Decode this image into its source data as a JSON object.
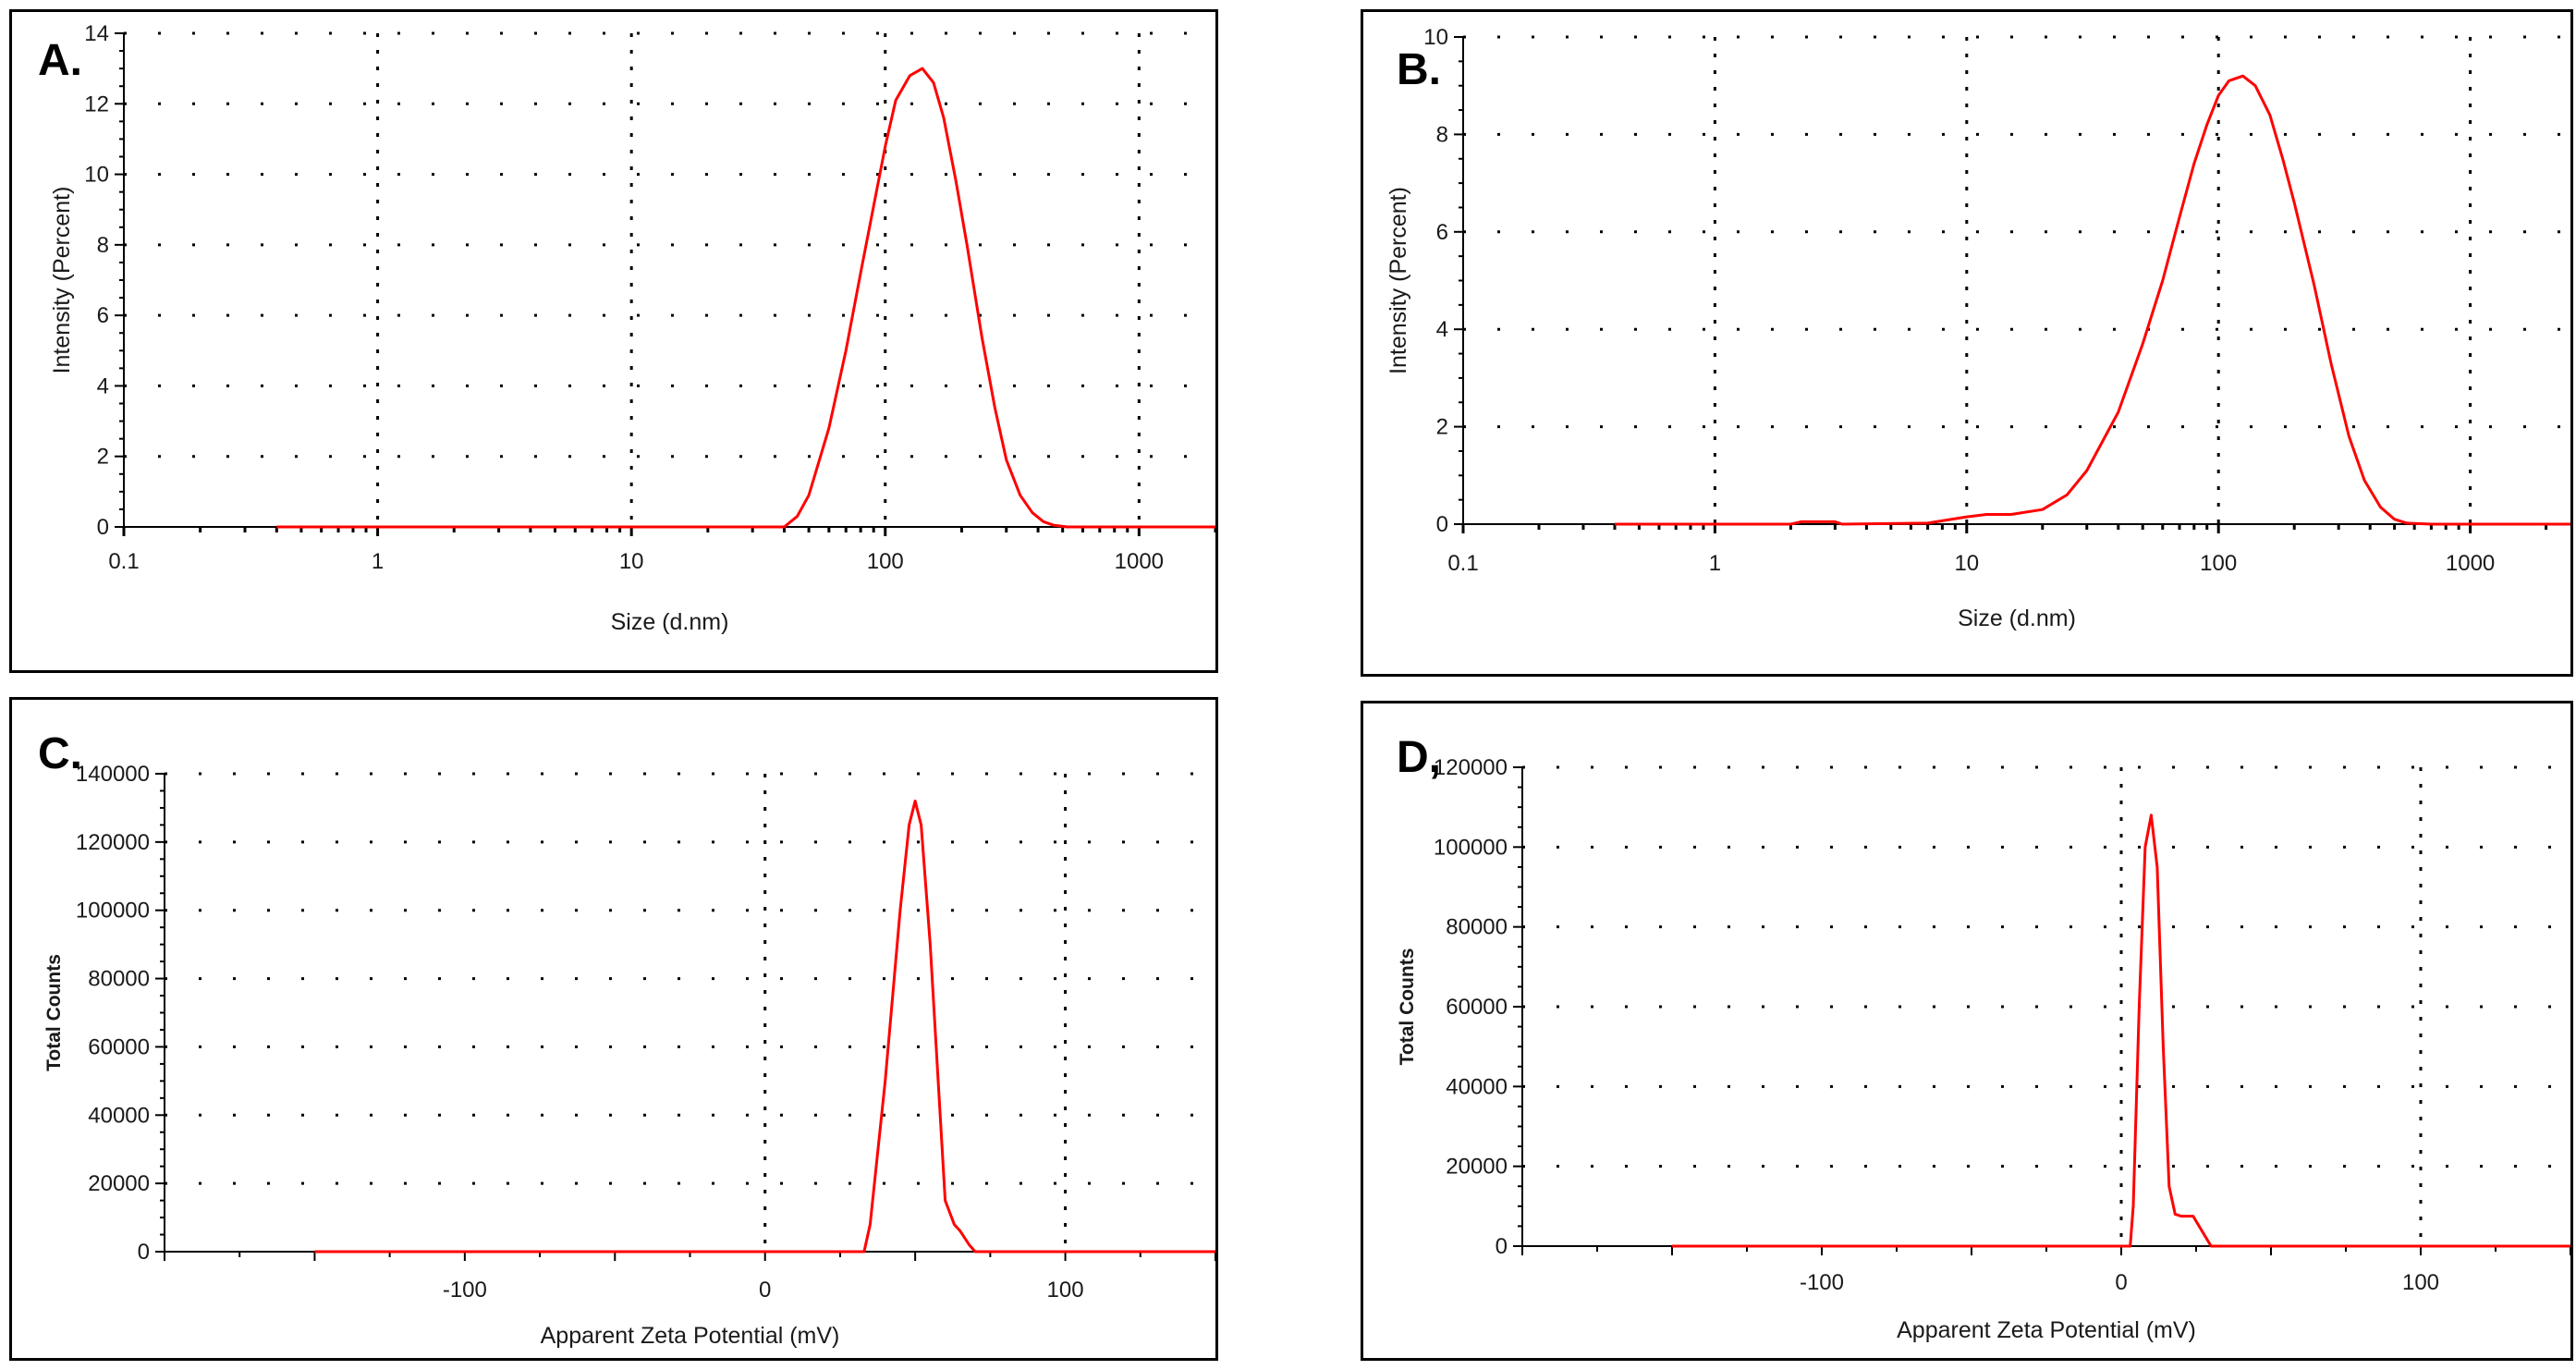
{
  "figure": {
    "background": "#ffffff",
    "curve_color": "#ff0000",
    "grid_color": "#000000"
  },
  "chart_data": [
    {
      "id": "a",
      "panel_label": "A.",
      "type": "line",
      "xscale": "log",
      "xlim": [
        0.1,
        2000
      ],
      "ylim": [
        0,
        14
      ],
      "xlabel": "Size (d.nm)",
      "ylabel": "Intensity (Percent)",
      "xticks": [
        0.1,
        1,
        10,
        100,
        1000
      ],
      "xtick_labels": [
        "0.1",
        "1",
        "10",
        "100",
        "1000"
      ],
      "yticks": [
        0,
        2,
        4,
        6,
        8,
        10,
        12,
        14
      ],
      "ytick_labels": [
        "0",
        "2",
        "4",
        "6",
        "8",
        "10",
        "12",
        "14"
      ],
      "series": [
        {
          "name": "Intensity",
          "x": [
            0.4,
            1,
            10,
            30,
            40,
            45,
            50,
            60,
            70,
            80,
            90,
            100,
            110,
            125,
            140,
            155,
            170,
            190,
            210,
            240,
            270,
            300,
            340,
            380,
            420,
            460,
            520,
            1000,
            2000
          ],
          "y": [
            0,
            0,
            0,
            0,
            0,
            0.3,
            0.9,
            2.8,
            5.0,
            7.2,
            9.1,
            10.8,
            12.1,
            12.8,
            13.0,
            12.6,
            11.6,
            9.8,
            8.0,
            5.4,
            3.4,
            1.9,
            0.9,
            0.4,
            0.15,
            0.05,
            0,
            0,
            0
          ]
        }
      ]
    },
    {
      "id": "b",
      "panel_label": "B.",
      "type": "line",
      "xscale": "log",
      "xlim": [
        0.1,
        2500
      ],
      "ylim": [
        0,
        10
      ],
      "xlabel": "Size (d.nm)",
      "ylabel": "Intensity (Percent)",
      "xticks": [
        0.1,
        1,
        10,
        100,
        1000
      ],
      "xtick_labels": [
        "0.1",
        "1",
        "10",
        "100",
        "1000"
      ],
      "yticks": [
        0,
        2,
        4,
        6,
        8,
        10
      ],
      "ytick_labels": [
        "0",
        "2",
        "4",
        "6",
        "8",
        "10"
      ],
      "series": [
        {
          "name": "Intensity",
          "x": [
            0.4,
            2.0,
            2.2,
            3.0,
            3.2,
            7,
            10,
            12,
            15,
            20,
            25,
            30,
            40,
            50,
            60,
            70,
            80,
            90,
            100,
            110,
            125,
            140,
            160,
            180,
            200,
            240,
            280,
            330,
            380,
            440,
            500,
            560,
            700,
            1000,
            2500
          ],
          "y": [
            0,
            0,
            0.05,
            0.05,
            0,
            0.02,
            0.15,
            0.2,
            0.2,
            0.3,
            0.6,
            1.1,
            2.3,
            3.7,
            5.0,
            6.3,
            7.4,
            8.2,
            8.8,
            9.1,
            9.2,
            9.0,
            8.4,
            7.5,
            6.6,
            4.9,
            3.3,
            1.8,
            0.9,
            0.35,
            0.1,
            0.02,
            0,
            0,
            0
          ]
        }
      ]
    },
    {
      "id": "c",
      "panel_label": "C.",
      "type": "line",
      "xscale": "linear",
      "xlim": [
        -200,
        150
      ],
      "ylim": [
        0,
        140000
      ],
      "xlabel": "Apparent Zeta Potential (mV)",
      "ylabel": "Total Counts",
      "xticks": [
        -100,
        0,
        100
      ],
      "xtick_labels": [
        "-100",
        "0",
        "100"
      ],
      "yticks": [
        0,
        20000,
        40000,
        60000,
        80000,
        100000,
        120000,
        140000
      ],
      "ytick_labels": [
        "0",
        "20000",
        "40000",
        "60000",
        "80000",
        "100000",
        "120000",
        "140000"
      ],
      "series": [
        {
          "name": "Total Counts",
          "x": [
            -150,
            33,
            35,
            40,
            45,
            48,
            50,
            52,
            55,
            58,
            60,
            63,
            65,
            68,
            70,
            150
          ],
          "y": [
            0,
            0,
            8000,
            50000,
            100000,
            125000,
            132000,
            125000,
            90000,
            45000,
            15000,
            8000,
            6000,
            2000,
            0,
            0
          ]
        }
      ]
    },
    {
      "id": "d",
      "panel_label": "D,",
      "type": "line",
      "xscale": "linear",
      "xlim": [
        -200,
        150
      ],
      "ylim": [
        0,
        120000
      ],
      "xlabel": "Apparent Zeta Potential (mV)",
      "ylabel": "Total Counts",
      "xticks": [
        -100,
        0,
        100
      ],
      "xtick_labels": [
        "-100",
        "0",
        "100"
      ],
      "yticks": [
        0,
        20000,
        40000,
        60000,
        80000,
        100000,
        120000
      ],
      "ytick_labels": [
        "0",
        "20000",
        "40000",
        "60000",
        "80000",
        "100000",
        "120000"
      ],
      "series": [
        {
          "name": "Total Counts",
          "x": [
            -150,
            3,
            4,
            6,
            8,
            10,
            12,
            14,
            16,
            18,
            20,
            22,
            24,
            26,
            28,
            30,
            150
          ],
          "y": [
            0,
            0,
            10000,
            60000,
            100000,
            108000,
            95000,
            50000,
            15000,
            8000,
            7500,
            7500,
            7500,
            5000,
            2500,
            0,
            0
          ]
        }
      ]
    }
  ]
}
